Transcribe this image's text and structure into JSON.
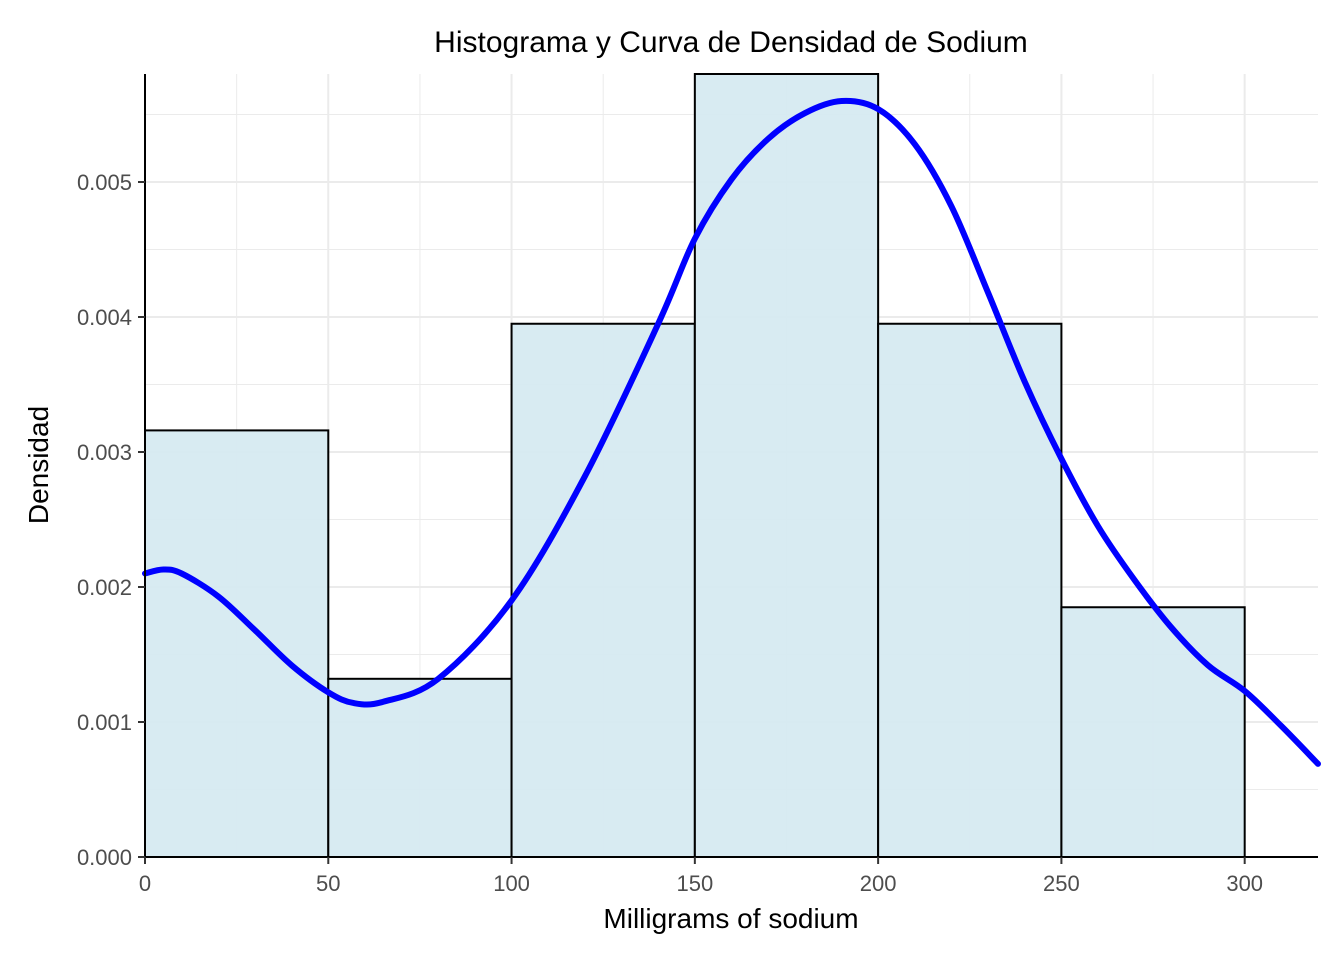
{
  "chart_data": {
    "type": "bar",
    "title": "Histograma y Curva de Densidad de Sodium",
    "xlabel": "Milligrams of sodium",
    "ylabel": "Densidad",
    "xlim": [
      0,
      320
    ],
    "ylim": [
      0,
      0.0058
    ],
    "x_ticks": [
      0,
      50,
      100,
      150,
      200,
      250,
      300
    ],
    "x_tick_labels": [
      "0",
      "50",
      "100",
      "150",
      "200",
      "250",
      "300"
    ],
    "y_ticks": [
      0,
      0.001,
      0.002,
      0.003,
      0.004,
      0.005
    ],
    "y_tick_labels": [
      "0.000",
      "0.001",
      "0.002",
      "0.003",
      "0.004",
      "0.005"
    ],
    "grid": true,
    "bins": [
      {
        "x0": 0,
        "x1": 50,
        "density": 0.00316
      },
      {
        "x0": 50,
        "x1": 100,
        "density": 0.00132
      },
      {
        "x0": 100,
        "x1": 150,
        "density": 0.00395
      },
      {
        "x0": 150,
        "x1": 200,
        "density": 0.0058
      },
      {
        "x0": 200,
        "x1": 250,
        "density": 0.00395
      },
      {
        "x0": 250,
        "x1": 300,
        "density": 0.00185
      }
    ],
    "density_curve": {
      "x": [
        0,
        5,
        10,
        20,
        30,
        40,
        50,
        57,
        65,
        80,
        100,
        120,
        140,
        150,
        160,
        170,
        180,
        190,
        200,
        210,
        220,
        230,
        240,
        250,
        260,
        270,
        280,
        290,
        300,
        310,
        320
      ],
      "y": [
        0.0021,
        0.00213,
        0.0021,
        0.00193,
        0.00168,
        0.00142,
        0.00122,
        0.00114,
        0.00115,
        0.00132,
        0.0019,
        0.00282,
        0.00395,
        0.00458,
        0.00502,
        0.00532,
        0.00551,
        0.0056,
        0.00554,
        0.00528,
        0.00482,
        0.00418,
        0.00352,
        0.00295,
        0.00245,
        0.00205,
        0.0017,
        0.00142,
        0.00123,
        0.00097,
        0.00069
      ]
    },
    "colors": {
      "bar_fill": "#d6eaf1",
      "bar_stroke": "#000000",
      "curve": "#0000ff",
      "grid": "#ebebeb",
      "axis": "#000000"
    }
  }
}
